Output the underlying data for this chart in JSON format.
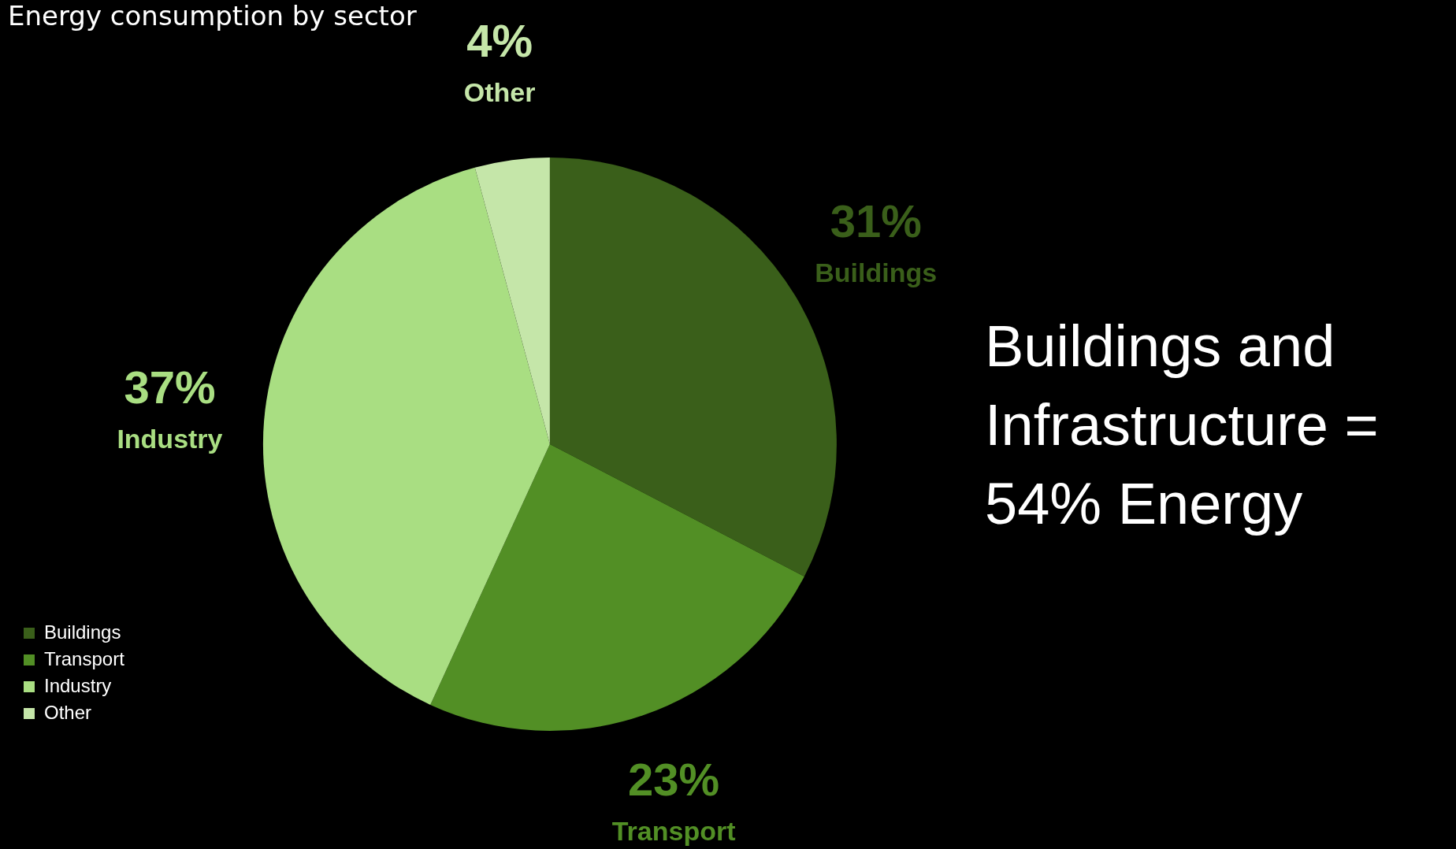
{
  "chart_data": {
    "type": "pie",
    "title": "Energy consumption by sector",
    "categories": [
      "Buildings",
      "Transport",
      "Industry",
      "Other"
    ],
    "values": [
      31,
      23,
      37,
      4
    ],
    "colors": [
      "#3a5f1a",
      "#528f25",
      "#a9de82",
      "#c5e6a9"
    ],
    "value_labels": [
      "31%",
      "23%",
      "37%",
      "4%"
    ],
    "legend": "bottom left",
    "annotations": [
      "Buildings and Infrastructure = 54% Energy"
    ]
  }
}
